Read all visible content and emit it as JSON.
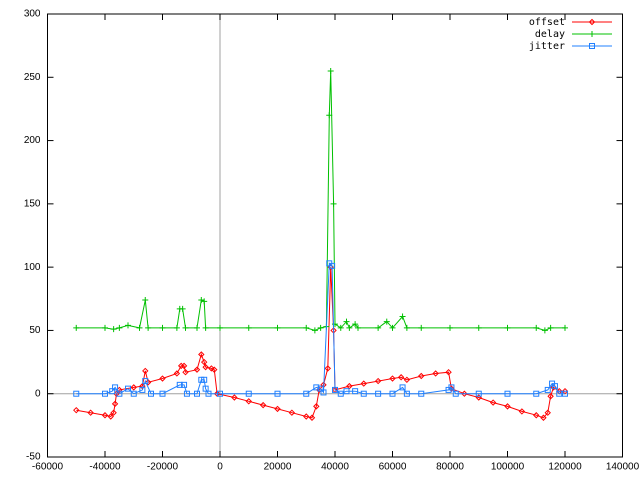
{
  "chart_data": {
    "type": "line",
    "xlim": [
      -60000,
      140000
    ],
    "xticks": [
      -60000,
      -40000,
      -20000,
      0,
      20000,
      40000,
      60000,
      80000,
      100000,
      120000,
      140000
    ],
    "ylim": [
      -50,
      300
    ],
    "yticks": [
      -50,
      0,
      50,
      100,
      150,
      200,
      250,
      300
    ],
    "zeroaxis": true,
    "legend": "top-right",
    "series": [
      {
        "name": "offset",
        "color": "#ff0000",
        "marker": "diamond",
        "x": [
          -50000,
          -45000,
          -40000,
          -38000,
          -37000,
          -36500,
          -36000,
          -35000,
          -30000,
          -27000,
          -26000,
          -25000,
          -20000,
          -15000,
          -13500,
          -12500,
          -12000,
          -8000,
          -6500,
          -5500,
          -5000,
          -3000,
          -2000,
          -1000,
          5000,
          10000,
          15000,
          20000,
          25000,
          30000,
          32000,
          33500,
          34500,
          36000,
          37500,
          38500,
          39500,
          40000,
          45000,
          50000,
          55000,
          60000,
          63000,
          65000,
          70000,
          75000,
          79500,
          80500,
          85000,
          90000,
          95000,
          100000,
          105000,
          110000,
          112500,
          114000,
          115000,
          116000,
          118000,
          120000
        ],
        "values": [
          -13,
          -15,
          -17,
          -18,
          -15,
          -8,
          0,
          3,
          5,
          6,
          18,
          9,
          12,
          16,
          22,
          22,
          17,
          19,
          31,
          25,
          21,
          20,
          19,
          0,
          -3,
          -6,
          -9,
          -12,
          -15,
          -18,
          -19,
          -10,
          3,
          7,
          20,
          100,
          50,
          3,
          6,
          8,
          10,
          12,
          13,
          11,
          14,
          16,
          17,
          4,
          0,
          -3,
          -7,
          -10,
          -14,
          -17,
          -19,
          -15,
          -2,
          5,
          2,
          2
        ]
      },
      {
        "name": "delay",
        "color": "#00c000",
        "marker": "plus",
        "x": [
          -50000,
          -40000,
          -37000,
          -35000,
          -32000,
          -28000,
          -26000,
          -25000,
          -20000,
          -15000,
          -14000,
          -13000,
          -12000,
          -8000,
          -6500,
          -5500,
          -5000,
          0,
          10000,
          20000,
          30000,
          33000,
          35000,
          37000,
          38000,
          38500,
          39500,
          40000,
          42000,
          44000,
          45000,
          47000,
          48000,
          55000,
          58000,
          60000,
          63500,
          65000,
          70000,
          80000,
          90000,
          100000,
          110000,
          113000,
          115000,
          120000
        ],
        "values": [
          52,
          52,
          51,
          52,
          54,
          52,
          74,
          52,
          52,
          52,
          67,
          67,
          52,
          52,
          74,
          73,
          52,
          52,
          52,
          52,
          52,
          50,
          52,
          53,
          220,
          255,
          150,
          55,
          52,
          57,
          52,
          55,
          52,
          52,
          57,
          52,
          61,
          52,
          52,
          52,
          52,
          52,
          52,
          50,
          52,
          52
        ]
      },
      {
        "name": "jitter",
        "color": "#2080ff",
        "marker": "square",
        "x": [
          -50000,
          -40000,
          -37500,
          -36500,
          -35000,
          -32000,
          -30000,
          -27000,
          -26000,
          -24000,
          -20000,
          -14000,
          -12500,
          -11500,
          -8000,
          -6500,
          -5500,
          -5000,
          -4000,
          0,
          10000,
          20000,
          30000,
          33500,
          35000,
          36000,
          38000,
          39000,
          40000,
          42000,
          44000,
          47000,
          50000,
          55000,
          60000,
          63500,
          65000,
          70000,
          79500,
          80500,
          82000,
          90000,
          100000,
          110000,
          114000,
          115500,
          116500,
          118000,
          120000
        ],
        "values": [
          0,
          0,
          2,
          5,
          0,
          4,
          0,
          3,
          10,
          0,
          0,
          7,
          7,
          0,
          0,
          11,
          11,
          4,
          0,
          0,
          0,
          0,
          0,
          5,
          4,
          1,
          103,
          101,
          3,
          0,
          2,
          2,
          0,
          0,
          0,
          5,
          0,
          0,
          3,
          5,
          0,
          0,
          0,
          0,
          3,
          8,
          6,
          0,
          0
        ]
      }
    ]
  }
}
